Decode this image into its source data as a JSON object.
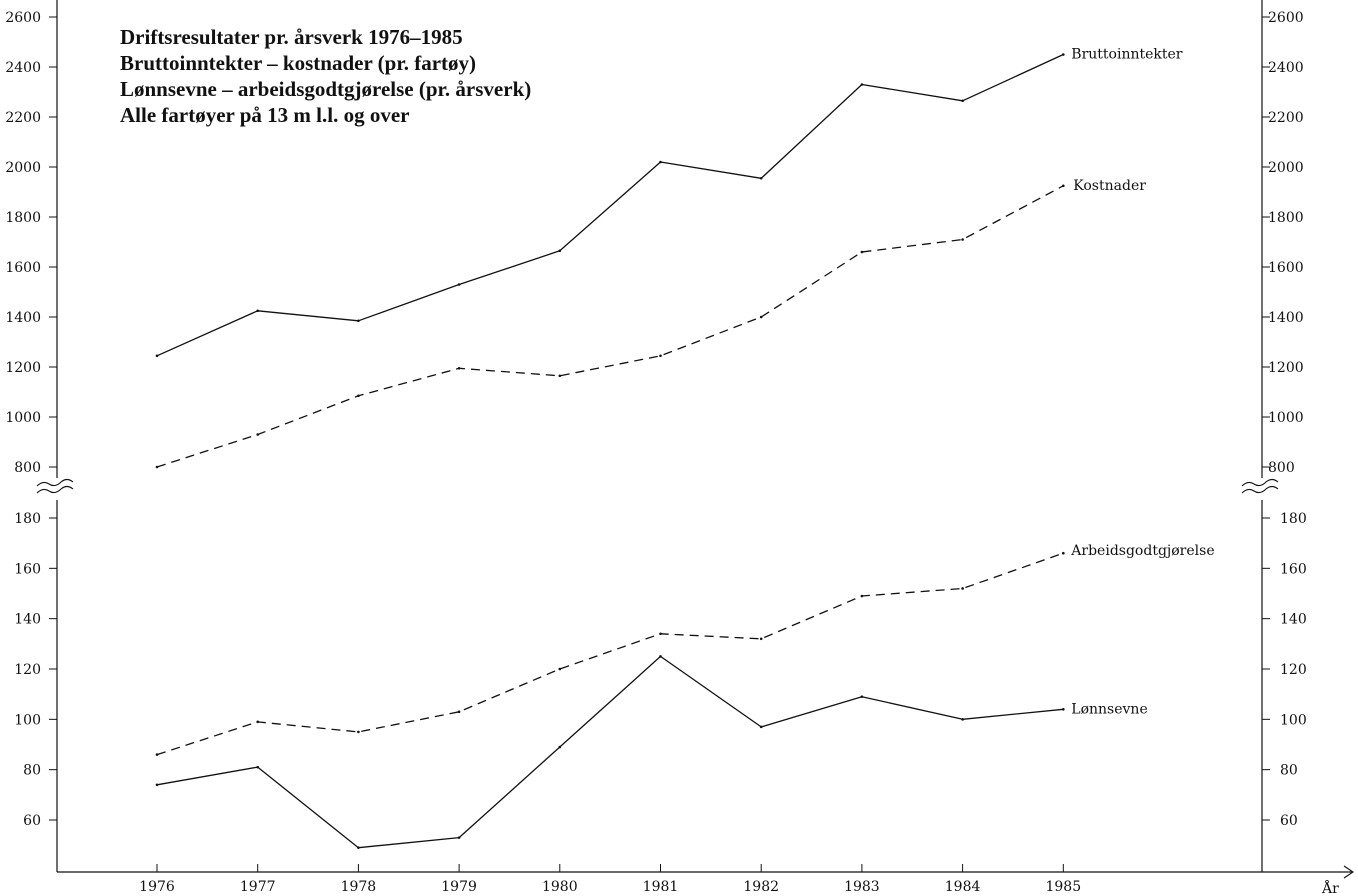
{
  "chart_data": {
    "type": "line",
    "title_lines": [
      "Driftsresultater pr. årsverk 1976–1985",
      "Bruttoinntekter – kostnader (pr. fartøy)",
      "Lønnsevne – arbeidsgodtgjørelse (pr. årsverk)",
      "Alle fartøyer på 13 m l.l. og over"
    ],
    "xlabel": "År",
    "x": [
      "1976",
      "1977",
      "1978",
      "1979",
      "1980",
      "1981",
      "1982",
      "1983",
      "1984",
      "1985"
    ],
    "upper_panel": {
      "yticks": [
        800,
        1000,
        1200,
        1400,
        1600,
        1800,
        2000,
        2200,
        2400,
        2600
      ],
      "ylim": [
        800,
        2600
      ],
      "series": [
        {
          "name": "Bruttoinntekter",
          "style": "solid",
          "values": [
            1245,
            1425,
            1385,
            1530,
            1665,
            2020,
            1955,
            2330,
            2265,
            2450
          ]
        },
        {
          "name": "Kostnader",
          "style": "dashed",
          "values": [
            800,
            930,
            1085,
            1195,
            1165,
            1245,
            1400,
            1660,
            1710,
            1925
          ]
        }
      ]
    },
    "lower_panel": {
      "yticks": [
        60,
        80,
        100,
        120,
        140,
        160,
        180
      ],
      "ylim": [
        60,
        180
      ],
      "series": [
        {
          "name": "Arbeidsgodtgjørelse",
          "style": "dashed",
          "values": [
            86,
            99,
            95,
            103,
            120,
            134,
            132,
            149,
            152,
            166
          ]
        },
        {
          "name": "Lønnsevne",
          "style": "solid",
          "values": [
            74,
            81,
            49,
            53,
            89,
            125,
            97,
            109,
            100,
            104
          ]
        }
      ]
    },
    "axis_break": true,
    "grid": false,
    "legend": "inline labels at right end of each line",
    "line_color": "#111111"
  }
}
